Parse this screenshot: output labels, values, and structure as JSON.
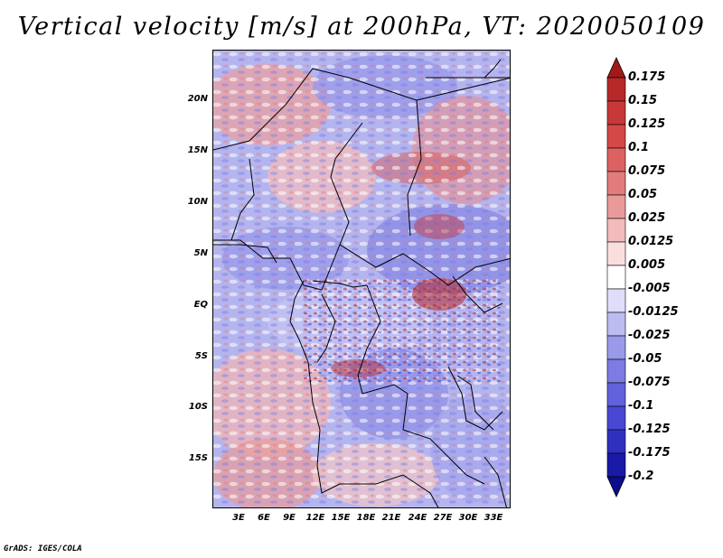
{
  "title": "Vertical velocity [m/s] at 200hPa, VT: 2020050109",
  "credit": "GrADS: IGES/COLA",
  "map": {
    "lat_labels": [
      "20N",
      "15N",
      "10N",
      "5N",
      "EQ",
      "5S",
      "10S",
      "15S"
    ],
    "lat_values": [
      20,
      15,
      10,
      5,
      0,
      -5,
      -10,
      -15
    ],
    "lon_labels": [
      "3E",
      "6E",
      "9E",
      "12E",
      "15E",
      "18E",
      "21E",
      "24E",
      "27E",
      "30E",
      "33E"
    ],
    "lon_values": [
      3,
      6,
      9,
      12,
      15,
      18,
      21,
      24,
      27,
      30,
      33
    ],
    "lon_range": [
      0,
      35
    ],
    "lat_range": [
      -20,
      25
    ]
  },
  "colorbar": {
    "labels": [
      "0.175",
      "0.15",
      "0.125",
      "0.1",
      "0.075",
      "0.05",
      "0.025",
      "0.0125",
      "0.005",
      "-0.005",
      "-0.0125",
      "-0.025",
      "-0.05",
      "-0.075",
      "-0.1",
      "-0.125",
      "-0.175",
      "-0.2"
    ],
    "colors": [
      "#a01a1a",
      "#b82828",
      "#c83838",
      "#d44848",
      "#dc6262",
      "#e27c7c",
      "#ea9a9a",
      "#f2bcbc",
      "#fadede",
      "#ffffff",
      "#dedefa",
      "#bcbcf2",
      "#9a9aea",
      "#7c7ce2",
      "#6262dc",
      "#4848d4",
      "#3030c0",
      "#1a1aa8",
      "#0c0c8c"
    ]
  }
}
